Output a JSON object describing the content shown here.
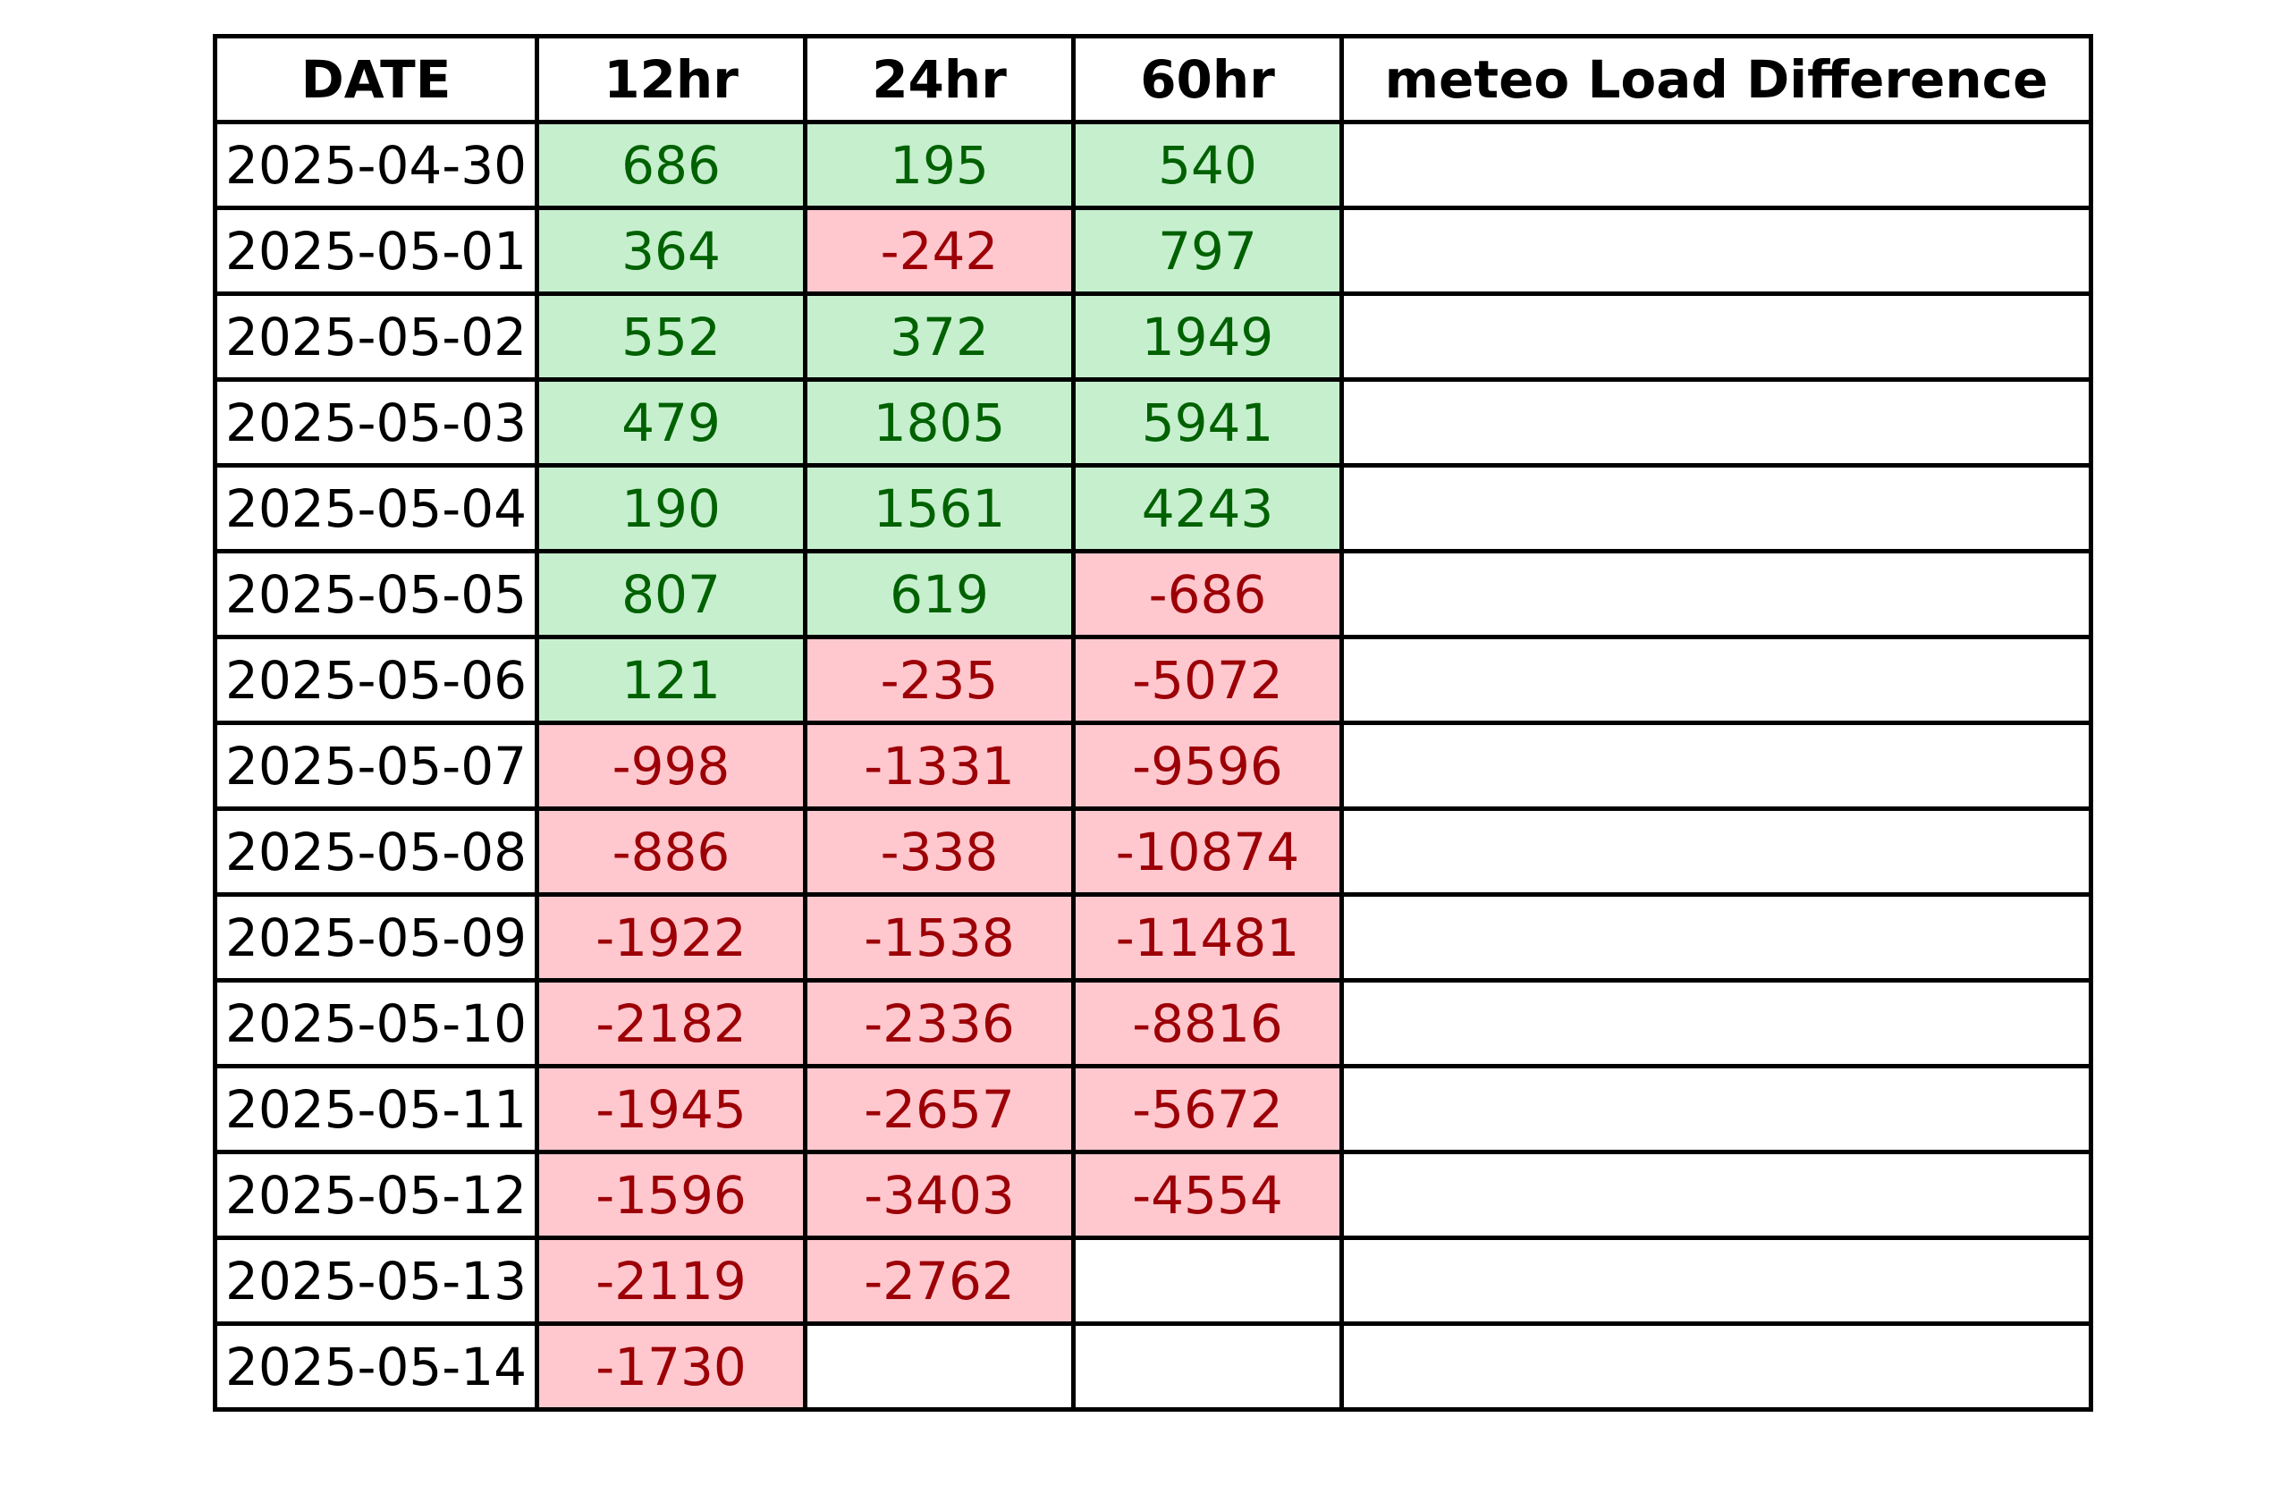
{
  "chart_data": {
    "type": "table",
    "columns": [
      "DATE",
      "12hr",
      "24hr",
      "60hr",
      "meteo Load Difference"
    ],
    "rows": [
      {
        "date": "2025-04-30",
        "h12": "686",
        "h24": "195",
        "h60": "540",
        "meteo": ""
      },
      {
        "date": "2025-05-01",
        "h12": "364",
        "h24": "-242",
        "h60": "797",
        "meteo": ""
      },
      {
        "date": "2025-05-02",
        "h12": "552",
        "h24": "372",
        "h60": "1949",
        "meteo": ""
      },
      {
        "date": "2025-05-03",
        "h12": "479",
        "h24": "1805",
        "h60": "5941",
        "meteo": ""
      },
      {
        "date": "2025-05-04",
        "h12": "190",
        "h24": "1561",
        "h60": "4243",
        "meteo": ""
      },
      {
        "date": "2025-05-05",
        "h12": "807",
        "h24": "619",
        "h60": "-686",
        "meteo": ""
      },
      {
        "date": "2025-05-06",
        "h12": "121",
        "h24": "-235",
        "h60": "-5072",
        "meteo": ""
      },
      {
        "date": "2025-05-07",
        "h12": "-998",
        "h24": "-1331",
        "h60": "-9596",
        "meteo": ""
      },
      {
        "date": "2025-05-08",
        "h12": "-886",
        "h24": "-338",
        "h60": "-10874",
        "meteo": ""
      },
      {
        "date": "2025-05-09",
        "h12": "-1922",
        "h24": "-1538",
        "h60": "-11481",
        "meteo": ""
      },
      {
        "date": "2025-05-10",
        "h12": "-2182",
        "h24": "-2336",
        "h60": "-8816",
        "meteo": ""
      },
      {
        "date": "2025-05-11",
        "h12": "-1945",
        "h24": "-2657",
        "h60": "-5672",
        "meteo": ""
      },
      {
        "date": "2025-05-12",
        "h12": "-1596",
        "h24": "-3403",
        "h60": "-4554",
        "meteo": ""
      },
      {
        "date": "2025-05-13",
        "h12": "-2119",
        "h24": "-2762",
        "h60": "",
        "meteo": ""
      },
      {
        "date": "2025-05-14",
        "h12": "-1730",
        "h24": "",
        "h60": "",
        "meteo": ""
      }
    ]
  },
  "colors": {
    "positive_fill": "#c6efce",
    "positive_text": "#006100",
    "negative_fill": "#ffc7ce",
    "negative_text": "#9c0006",
    "border": "#000000"
  }
}
